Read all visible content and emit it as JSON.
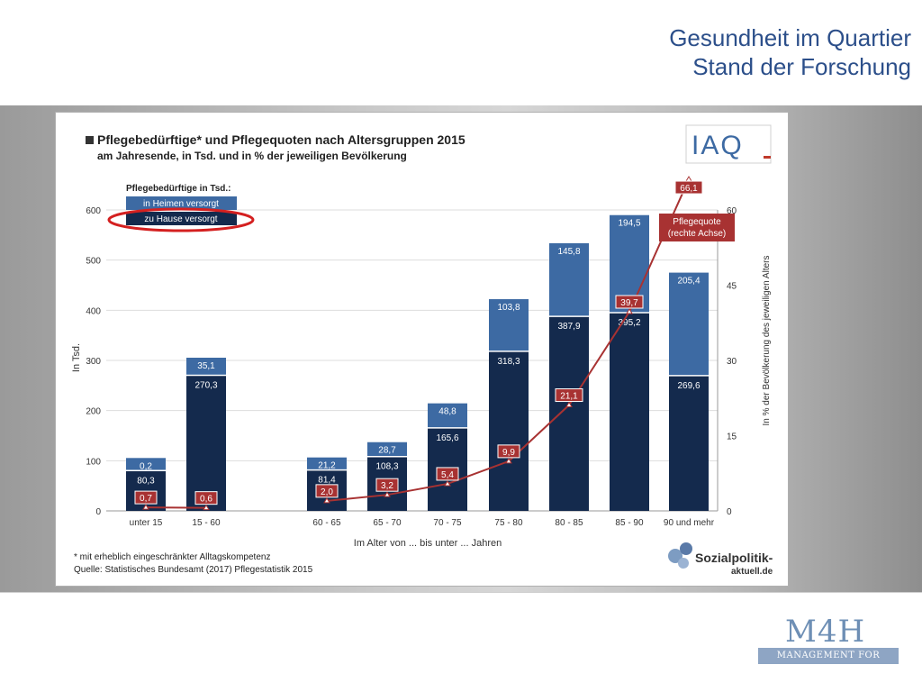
{
  "slide": {
    "title_line1": "Gesundheit im Quartier",
    "title_line2": "Stand der Forschung"
  },
  "logo_m4h": {
    "word": "M4H",
    "tagline": "MANAGEMENT FOR HEALTH"
  },
  "chart_data": {
    "type": "bar",
    "stacked": true,
    "title": "Pflegebedürftige* und Pflegequoten nach Altersgruppen 2015",
    "subtitle": "am Jahresende, in Tsd. und in % der jeweiligen Bevölkerung",
    "xlabel": "Im Alter von ... bis unter ... Jahren",
    "ylabel": "In Tsd.",
    "ylabel_right": "In % der Bevölkerung des jeweiligen Alters",
    "ylim": [
      0,
      600
    ],
    "ylim_right": [
      0,
      60
    ],
    "yticks": [
      0,
      100,
      200,
      300,
      400,
      500,
      600
    ],
    "yticks_right": [
      0,
      15,
      30,
      45,
      60
    ],
    "categories": [
      "unter 15",
      "15 - 60",
      "60 - 65",
      "65 - 70",
      "70 - 75",
      "75 - 80",
      "80 - 85",
      "85 - 90",
      "90 und mehr"
    ],
    "legend_title": "Pflegebedürftige in Tsd.:",
    "series": [
      {
        "name": "zu Hause versorgt",
        "color": "#142a4d",
        "values": [
          80.3,
          270.3,
          81.4,
          108.3,
          165.6,
          318.3,
          387.9,
          395.2,
          269.6
        ],
        "labels": [
          "80,3",
          "270,3",
          "81,4",
          "108,3",
          "165,6",
          "318,3",
          "387,9",
          "395,2",
          "269,6"
        ]
      },
      {
        "name": "in Heimen versorgt",
        "color": "#3d6aa3",
        "values": [
          0.2,
          35.1,
          21.2,
          28.7,
          48.8,
          103.8,
          145.8,
          194.5,
          205.4
        ],
        "labels": [
          "0,2",
          "35,1",
          "21,2",
          "28,7",
          "48,8",
          "103,8",
          "145,8",
          "194,5",
          "205,4"
        ]
      }
    ],
    "line": {
      "name": "Pflegequote (rechte Achse)",
      "name_line1": "Pflegequote",
      "name_line2": "(rechte Achse)",
      "color": "#a83232",
      "values": [
        0.7,
        0.6,
        2.0,
        3.2,
        5.4,
        9.9,
        21.1,
        39.7,
        66.1
      ],
      "labels": [
        "0,7",
        "0,6",
        "2,0",
        "3,2",
        "5,4",
        "9,9",
        "21,1",
        "39,7",
        "66,1"
      ]
    },
    "footnote": "* mit erheblich eingeschränkter Alltagskompetenz",
    "source": "Quelle: Statistisches Bundesamt (2017) Pflegestatistik 2015",
    "brand_iaq": "IAQ",
    "brand_sozialpolitik_line1": "Sozialpolitik-",
    "brand_sozialpolitik_line2": "aktuell.de",
    "highlight": "red ellipse around legend entry 'zu Hause versorgt'"
  }
}
